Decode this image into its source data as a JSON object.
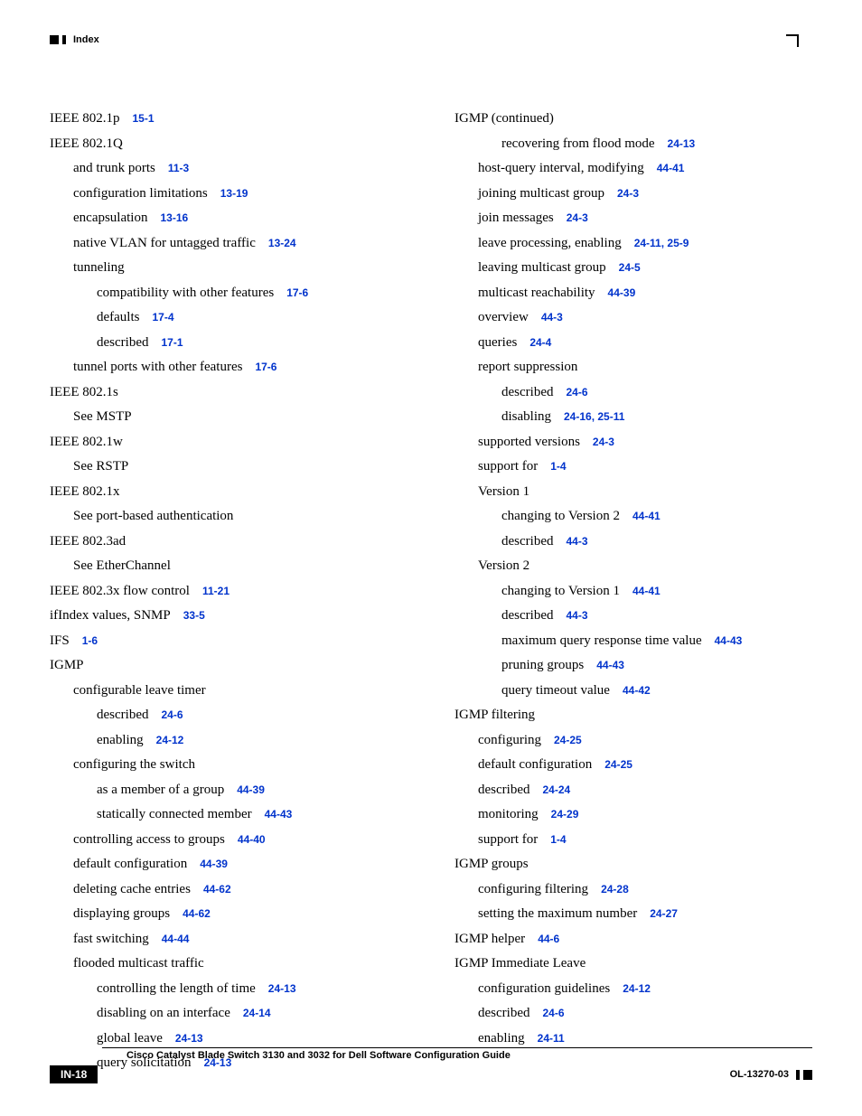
{
  "header": {
    "label": "Index"
  },
  "left": [
    {
      "indent": 0,
      "text": "IEEE 802.1p",
      "ref": "15-1"
    },
    {
      "indent": 0,
      "text": "IEEE 802.1Q"
    },
    {
      "indent": 1,
      "text": "and trunk ports",
      "ref": "11-3"
    },
    {
      "indent": 1,
      "text": "configuration limitations",
      "ref": "13-19"
    },
    {
      "indent": 1,
      "text": "encapsulation",
      "ref": "13-16"
    },
    {
      "indent": 1,
      "text": "native VLAN for untagged traffic",
      "ref": "13-24"
    },
    {
      "indent": 1,
      "text": "tunneling"
    },
    {
      "indent": 2,
      "text": "compatibility with other features",
      "ref": "17-6"
    },
    {
      "indent": 2,
      "text": "defaults",
      "ref": "17-4"
    },
    {
      "indent": 2,
      "text": "described",
      "ref": "17-1"
    },
    {
      "indent": 1,
      "text": "tunnel ports with other features",
      "ref": "17-6"
    },
    {
      "indent": 0,
      "text": "IEEE 802.1s"
    },
    {
      "indent": 1,
      "text": "See MSTP"
    },
    {
      "indent": 0,
      "text": "IEEE 802.1w"
    },
    {
      "indent": 1,
      "text": "See RSTP"
    },
    {
      "indent": 0,
      "text": "IEEE 802.1x"
    },
    {
      "indent": 1,
      "text": "See port-based authentication"
    },
    {
      "indent": 0,
      "text": "IEEE 802.3ad"
    },
    {
      "indent": 1,
      "text": "See EtherChannel"
    },
    {
      "indent": 0,
      "text": "IEEE 802.3x flow control",
      "ref": "11-21"
    },
    {
      "indent": 0,
      "text": "ifIndex values, SNMP",
      "ref": "33-5"
    },
    {
      "indent": 0,
      "text": "IFS",
      "ref": "1-6"
    },
    {
      "indent": 0,
      "text": "IGMP"
    },
    {
      "indent": 1,
      "text": "configurable leave timer"
    },
    {
      "indent": 2,
      "text": "described",
      "ref": "24-6"
    },
    {
      "indent": 2,
      "text": "enabling",
      "ref": "24-12"
    },
    {
      "indent": 1,
      "text": "configuring the switch"
    },
    {
      "indent": 2,
      "text": "as a member of a group",
      "ref": "44-39"
    },
    {
      "indent": 2,
      "text": "statically connected member",
      "ref": "44-43"
    },
    {
      "indent": 1,
      "text": "controlling access to groups",
      "ref": "44-40"
    },
    {
      "indent": 1,
      "text": "default configuration",
      "ref": "44-39"
    },
    {
      "indent": 1,
      "text": "deleting cache entries",
      "ref": "44-62"
    },
    {
      "indent": 1,
      "text": "displaying groups",
      "ref": "44-62"
    },
    {
      "indent": 1,
      "text": "fast switching",
      "ref": "44-44"
    },
    {
      "indent": 1,
      "text": "flooded multicast traffic"
    },
    {
      "indent": 2,
      "text": "controlling the length of time",
      "ref": "24-13"
    },
    {
      "indent": 2,
      "text": "disabling on an interface",
      "ref": "24-14"
    },
    {
      "indent": 2,
      "text": "global leave",
      "ref": "24-13"
    },
    {
      "indent": 2,
      "text": "query solicitation",
      "ref": "24-13"
    }
  ],
  "right": [
    {
      "indent": 0,
      "text": "IGMP (continued)"
    },
    {
      "indent": 2,
      "text": "recovering from flood mode",
      "ref": "24-13"
    },
    {
      "indent": 1,
      "text": "host-query interval, modifying",
      "ref": "44-41"
    },
    {
      "indent": 1,
      "text": "joining multicast group",
      "ref": "24-3"
    },
    {
      "indent": 1,
      "text": "join messages",
      "ref": "24-3"
    },
    {
      "indent": 1,
      "text": "leave processing, enabling",
      "ref": "24-11, 25-9"
    },
    {
      "indent": 1,
      "text": "leaving multicast group",
      "ref": "24-5"
    },
    {
      "indent": 1,
      "text": "multicast reachability",
      "ref": "44-39"
    },
    {
      "indent": 1,
      "text": "overview",
      "ref": "44-3"
    },
    {
      "indent": 1,
      "text": "queries",
      "ref": "24-4"
    },
    {
      "indent": 1,
      "text": "report suppression"
    },
    {
      "indent": 2,
      "text": "described",
      "ref": "24-6"
    },
    {
      "indent": 2,
      "text": "disabling",
      "ref": "24-16, 25-11"
    },
    {
      "indent": 1,
      "text": "supported versions",
      "ref": "24-3"
    },
    {
      "indent": 1,
      "text": "support for",
      "ref": "1-4"
    },
    {
      "indent": 1,
      "text": "Version 1"
    },
    {
      "indent": 2,
      "text": "changing to Version 2",
      "ref": "44-41"
    },
    {
      "indent": 2,
      "text": "described",
      "ref": "44-3"
    },
    {
      "indent": 1,
      "text": "Version 2"
    },
    {
      "indent": 2,
      "text": "changing to Version 1",
      "ref": "44-41"
    },
    {
      "indent": 2,
      "text": "described",
      "ref": "44-3"
    },
    {
      "indent": 2,
      "text": "maximum query response time value",
      "ref": "44-43"
    },
    {
      "indent": 2,
      "text": "pruning groups",
      "ref": "44-43"
    },
    {
      "indent": 2,
      "text": "query timeout value",
      "ref": "44-42"
    },
    {
      "indent": 0,
      "text": "IGMP filtering"
    },
    {
      "indent": 1,
      "text": "configuring",
      "ref": "24-25"
    },
    {
      "indent": 1,
      "text": "default configuration",
      "ref": "24-25"
    },
    {
      "indent": 1,
      "text": "described",
      "ref": "24-24"
    },
    {
      "indent": 1,
      "text": "monitoring",
      "ref": "24-29"
    },
    {
      "indent": 1,
      "text": "support for",
      "ref": "1-4"
    },
    {
      "indent": 0,
      "text": "IGMP groups"
    },
    {
      "indent": 1,
      "text": "configuring filtering",
      "ref": "24-28"
    },
    {
      "indent": 1,
      "text": "setting the maximum number",
      "ref": "24-27"
    },
    {
      "indent": 0,
      "text": "IGMP helper",
      "ref": "44-6"
    },
    {
      "indent": 0,
      "text": "IGMP Immediate Leave"
    },
    {
      "indent": 1,
      "text": "configuration guidelines",
      "ref": "24-12"
    },
    {
      "indent": 1,
      "text": "described",
      "ref": "24-6"
    },
    {
      "indent": 1,
      "text": "enabling",
      "ref": "24-11"
    }
  ],
  "footer": {
    "title": "Cisco Catalyst Blade Switch 3130 and 3032 for Dell Software Configuration Guide",
    "page": "IN-18",
    "docid": "OL-13270-03"
  }
}
